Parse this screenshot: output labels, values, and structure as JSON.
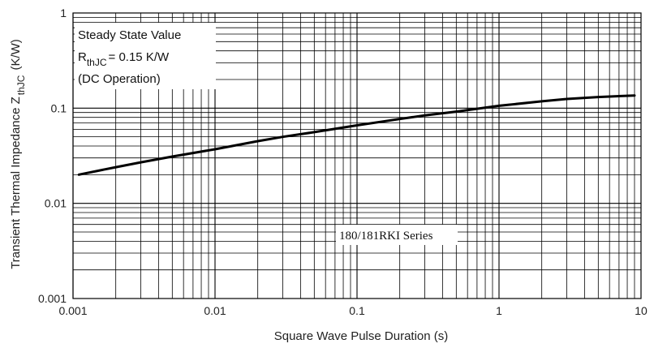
{
  "chart_data": {
    "type": "line",
    "title": "",
    "xlabel": "Square Wave Pulse Duration (s)",
    "ylabel": "Transient Thermal Impedance Z",
    "ylabel_subscript": "thJC",
    "ylabel_unit": "(K/W)",
    "x_scale": "log",
    "y_scale": "log",
    "xlim": [
      0.001,
      10
    ],
    "ylim": [
      0.001,
      1
    ],
    "x_ticks": [
      "0.001",
      "0.01",
      "0.1",
      "1",
      "10"
    ],
    "y_ticks": [
      "0.001",
      "0.01",
      "0.1",
      "1"
    ],
    "grid": true,
    "annotation": {
      "line1": "Steady State Value",
      "line2_prefix": "R",
      "line2_subscript": "thJC",
      "line2_suffix": "= 0.15 K/W",
      "line3": "(DC Operation)"
    },
    "series_label": "180/181RKI Series",
    "series": [
      {
        "x": [
          0.0011,
          0.002,
          0.003,
          0.005,
          0.01,
          0.02,
          0.03,
          0.05,
          0.1,
          0.2,
          0.3,
          0.5,
          1,
          2,
          3,
          5,
          9
        ],
        "y": [
          0.02,
          0.024,
          0.027,
          0.031,
          0.037,
          0.045,
          0.05,
          0.056,
          0.066,
          0.077,
          0.084,
          0.092,
          0.106,
          0.118,
          0.125,
          0.131,
          0.136
        ]
      }
    ]
  }
}
